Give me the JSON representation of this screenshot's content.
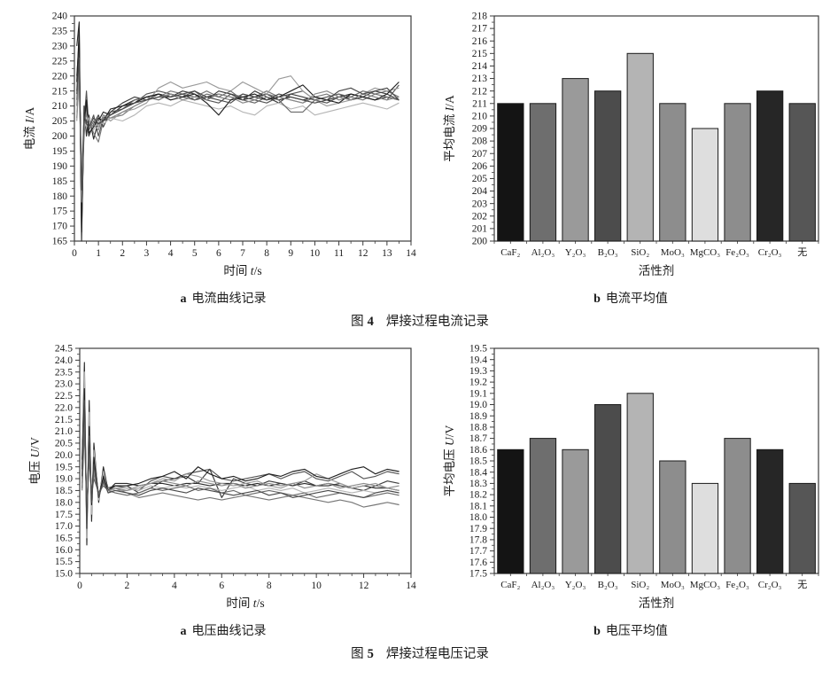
{
  "figures": {
    "fig4": {
      "label": "图",
      "number": "4",
      "title": "焊接过程电流记录"
    },
    "fig5": {
      "label": "图",
      "number": "5",
      "title": "焊接过程电压记录"
    }
  },
  "chart_data": [
    {
      "type": "line",
      "caption_prefix": "a",
      "caption": "电流曲线记录",
      "ylabel": {
        "pre": "电流 ",
        "var": "I",
        "post": "/A"
      },
      "xlabel": {
        "pre": "时间 ",
        "var": "t",
        "post": "/s"
      },
      "ylim": [
        165,
        240
      ],
      "ytick_step": 5,
      "ytick_minor": 2.5,
      "ytick_decimals": 0,
      "xlim": [
        0,
        14
      ],
      "xtick_step": 1,
      "xtick_minor": 0.5,
      "grid": false,
      "legend": false,
      "x": [
        0.1,
        0.2,
        0.3,
        0.4,
        0.5,
        0.6,
        0.8,
        1,
        1.2,
        1.5,
        2,
        2.5,
        3,
        3.5,
        4,
        4.5,
        5,
        5.5,
        6,
        6.5,
        7,
        7.5,
        8,
        8.5,
        9,
        9.5,
        10,
        10.5,
        11,
        11.5,
        12,
        12.5,
        13,
        13.5
      ],
      "series": [
        {
          "color": "#2b2b2b",
          "values": [
            230,
            238,
            165,
            210,
            200,
            207,
            199,
            205,
            208,
            207,
            210,
            212,
            213,
            214,
            213,
            214,
            212,
            213,
            214,
            213,
            212,
            213,
            214,
            212,
            213,
            212,
            213,
            212,
            213,
            214,
            213,
            212,
            213,
            212
          ]
        },
        {
          "color": "#555555",
          "values": [
            220,
            232,
            170,
            205,
            215,
            203,
            207,
            200,
            206,
            208,
            209,
            211,
            214,
            215,
            214,
            213,
            215,
            212,
            211,
            214,
            213,
            212,
            211,
            213,
            214,
            215,
            212,
            211,
            213,
            212,
            214,
            213,
            212,
            217
          ]
        },
        {
          "color": "#777777",
          "values": [
            210,
            225,
            180,
            200,
            210,
            205,
            201,
            198,
            205,
            206,
            207,
            210,
            212,
            213,
            215,
            214,
            213,
            215,
            213,
            212,
            214,
            213,
            215,
            213,
            212,
            211,
            213,
            214,
            212,
            213,
            212,
            214,
            215,
            213
          ]
        },
        {
          "color": "#3d3d3d",
          "values": [
            215,
            230,
            175,
            208,
            205,
            200,
            204,
            207,
            203,
            208,
            211,
            213,
            212,
            214,
            213,
            215,
            214,
            212,
            215,
            214,
            212,
            215,
            213,
            211,
            214,
            213,
            212,
            213,
            214,
            212,
            213,
            215,
            214,
            212
          ]
        },
        {
          "color": "#9a9a9a",
          "values": [
            205,
            220,
            185,
            202,
            208,
            204,
            206,
            203,
            207,
            205,
            208,
            209,
            211,
            216,
            218,
            216,
            217,
            218,
            216,
            215,
            218,
            216,
            214,
            219,
            220,
            215,
            212,
            210,
            211,
            212,
            214,
            216,
            215,
            216
          ]
        },
        {
          "color": "#b5b5b5",
          "values": [
            208,
            215,
            190,
            205,
            203,
            206,
            202,
            205,
            204,
            206,
            205,
            207,
            210,
            211,
            210,
            212,
            211,
            210,
            209,
            210,
            208,
            207,
            210,
            211,
            209,
            210,
            207,
            208,
            209,
            210,
            211,
            210,
            209,
            211
          ]
        },
        {
          "color": "#696969",
          "values": [
            212,
            228,
            172,
            206,
            210,
            202,
            205,
            204,
            206,
            207,
            209,
            212,
            213,
            212,
            214,
            213,
            212,
            214,
            213,
            215,
            212,
            211,
            213,
            212,
            208,
            208,
            212,
            213,
            214,
            213,
            215,
            214,
            213,
            212
          ]
        },
        {
          "color": "#1f1f1f",
          "values": [
            218,
            235,
            168,
            204,
            212,
            201,
            203,
            206,
            205,
            209,
            210,
            211,
            213,
            214,
            212,
            213,
            214,
            211,
            207,
            212,
            213,
            214,
            212,
            213,
            215,
            217,
            213,
            212,
            211,
            214,
            213,
            212,
            214,
            218
          ]
        },
        {
          "color": "#8a8a8a",
          "values": [
            206,
            222,
            178,
            203,
            207,
            205,
            204,
            202,
            207,
            206,
            208,
            210,
            212,
            213,
            214,
            212,
            213,
            212,
            214,
            213,
            211,
            212,
            214,
            213,
            212,
            211,
            214,
            215,
            213,
            212,
            214,
            213,
            212,
            213
          ]
        },
        {
          "color": "#4a4a4a",
          "values": [
            214,
            226,
            182,
            207,
            204,
            203,
            206,
            204,
            205,
            207,
            209,
            211,
            212,
            213,
            213,
            214,
            215,
            213,
            212,
            211,
            214,
            213,
            212,
            214,
            213,
            212,
            211,
            212,
            215,
            216,
            214,
            215,
            216,
            212
          ]
        }
      ]
    },
    {
      "type": "bar",
      "caption_prefix": "b",
      "caption": "电流平均值",
      "ylabel": {
        "pre": "平均电流 ",
        "var": "I",
        "post": "/A"
      },
      "xlabel": {
        "pre": "活性剂",
        "var": "",
        "post": ""
      },
      "ylim": [
        200,
        218
      ],
      "ytick_step": 1,
      "ytick_minor": 0.5,
      "ytick_decimals": 0,
      "grid": false,
      "legend": false,
      "categories": [
        "CaF₂",
        "Al₂O₃",
        "Y₂O₃",
        "B₂O₃",
        "SiO₂",
        "MoO₃",
        "MgCO₃",
        "Fe₂O₃",
        "Cr₂O₃",
        "无"
      ],
      "values": [
        211,
        211,
        213,
        212,
        215,
        211,
        209,
        211,
        212,
        211
      ],
      "colors": [
        "#141414",
        "#6e6e6e",
        "#9a9a9a",
        "#4c4c4c",
        "#b4b4b4",
        "#8d8d8d",
        "#dedede",
        "#8d8d8d",
        "#262626",
        "#565656"
      ]
    },
    {
      "type": "line",
      "caption_prefix": "a",
      "caption": "电压曲线记录",
      "ylabel": {
        "pre": "电压 ",
        "var": "U",
        "post": "/V"
      },
      "xlabel": {
        "pre": "时间 ",
        "var": "t",
        "post": "/s"
      },
      "ylim": [
        15,
        24.5
      ],
      "ytick_step": 0.5,
      "ytick_minor": 0.25,
      "ytick_decimals": 1,
      "xlim": [
        0,
        14
      ],
      "xtick_step": 2,
      "xtick_minor": 0.5,
      "grid": false,
      "legend": false,
      "x": [
        0.1,
        0.2,
        0.3,
        0.4,
        0.5,
        0.6,
        0.8,
        1,
        1.2,
        1.5,
        2,
        2.5,
        3,
        3.5,
        4,
        4.5,
        5,
        5.5,
        6,
        6.5,
        7,
        7.5,
        8,
        8.5,
        9,
        9.5,
        10,
        10.5,
        11,
        11.5,
        12,
        12.5,
        13,
        13.5
      ],
      "series": [
        {
          "color": "#2b2b2b",
          "values": [
            19.8,
            23.9,
            16.2,
            22.3,
            17.2,
            20.5,
            18.0,
            19.5,
            18.5,
            18.8,
            18.8,
            18.7,
            18.8,
            18.8,
            18.7,
            18.8,
            18.8,
            18.7,
            18.8,
            18.8,
            18.7,
            18.8,
            18.7,
            18.8,
            18.7,
            18.8,
            18.7,
            18.7,
            18.8,
            18.6,
            18.7,
            18.6,
            18.6,
            18.5
          ]
        },
        {
          "color": "#555555",
          "values": [
            19.0,
            22.5,
            17.0,
            21.0,
            18.0,
            19.8,
            18.3,
            19.0,
            18.6,
            18.7,
            18.6,
            18.5,
            18.9,
            19.1,
            19.0,
            19.2,
            19.3,
            19.4,
            19.0,
            18.9,
            19.0,
            19.1,
            19.2,
            19.0,
            19.2,
            19.3,
            19.0,
            18.9,
            19.1,
            19.3,
            19.0,
            19.1,
            19.3,
            19.2
          ]
        },
        {
          "color": "#777777",
          "values": [
            18.5,
            21.5,
            17.5,
            20.0,
            18.2,
            19.2,
            18.4,
            18.8,
            18.5,
            18.6,
            18.4,
            18.2,
            18.3,
            18.4,
            18.3,
            18.2,
            18.1,
            18.2,
            18.1,
            18.2,
            18.3,
            18.2,
            18.1,
            18.2,
            18.3,
            18.2,
            18.1,
            18.0,
            18.1,
            18.0,
            17.8,
            17.9,
            18.0,
            17.9
          ]
        },
        {
          "color": "#3d3d3d",
          "values": [
            19.5,
            23.0,
            16.8,
            21.5,
            17.8,
            20.0,
            18.2,
            19.2,
            18.6,
            18.7,
            18.7,
            18.4,
            18.6,
            18.9,
            19.0,
            19.1,
            18.8,
            19.4,
            18.2,
            19.0,
            18.8,
            18.7,
            18.9,
            18.8,
            18.7,
            18.9,
            18.7,
            18.8,
            18.7,
            18.6,
            18.5,
            18.7,
            18.9,
            18.8
          ]
        },
        {
          "color": "#9a9a9a",
          "values": [
            18.8,
            22.0,
            17.3,
            20.5,
            18.1,
            19.5,
            18.3,
            18.9,
            18.6,
            18.5,
            18.5,
            18.6,
            18.8,
            19.0,
            18.9,
            19.2,
            19.1,
            18.9,
            18.8,
            18.7,
            18.8,
            18.9,
            18.7,
            18.6,
            18.8,
            18.9,
            19.2,
            19.0,
            18.8,
            18.6,
            18.7,
            18.8,
            18.6,
            18.5
          ]
        },
        {
          "color": "#b5b5b5",
          "values": [
            19.2,
            23.5,
            16.5,
            21.8,
            17.5,
            20.2,
            18.1,
            19.3,
            18.4,
            18.6,
            18.6,
            18.5,
            18.7,
            18.6,
            18.7,
            18.6,
            18.7,
            18.6,
            18.5,
            18.6,
            18.7,
            18.5,
            18.6,
            18.5,
            18.6,
            18.4,
            18.5,
            18.6,
            18.5,
            18.4,
            18.5,
            18.4,
            18.5,
            18.4
          ]
        },
        {
          "color": "#696969",
          "values": [
            18.6,
            21.0,
            17.8,
            19.8,
            18.3,
            19.0,
            18.4,
            18.7,
            18.5,
            18.4,
            18.3,
            18.4,
            18.6,
            18.5,
            18.6,
            18.7,
            18.5,
            18.6,
            18.4,
            18.5,
            18.3,
            18.4,
            18.5,
            18.4,
            18.3,
            18.4,
            18.2,
            18.3,
            18.4,
            18.3,
            18.2,
            18.3,
            18.4,
            18.3
          ]
        },
        {
          "color": "#1f1f1f",
          "values": [
            19.4,
            22.8,
            17.1,
            21.2,
            17.9,
            19.9,
            18.2,
            19.1,
            18.5,
            18.7,
            18.7,
            18.8,
            19.0,
            19.1,
            19.3,
            19.0,
            19.5,
            19.2,
            19.0,
            19.1,
            18.9,
            19.0,
            19.2,
            19.1,
            19.3,
            19.4,
            19.1,
            19.0,
            19.2,
            19.4,
            19.5,
            19.2,
            19.4,
            19.3
          ]
        },
        {
          "color": "#8a8a8a",
          "values": [
            18.9,
            21.8,
            17.6,
            20.2,
            18.2,
            19.3,
            18.3,
            18.8,
            18.5,
            18.6,
            18.5,
            18.7,
            18.8,
            18.9,
            18.8,
            18.7,
            18.9,
            18.8,
            18.7,
            18.8,
            18.6,
            18.7,
            18.8,
            18.7,
            18.8,
            18.6,
            18.7,
            18.8,
            18.6,
            18.7,
            18.8,
            18.7,
            18.6,
            18.7
          ]
        },
        {
          "color": "#4a4a4a",
          "values": [
            19.1,
            22.3,
            16.9,
            20.8,
            18.0,
            19.6,
            18.2,
            18.9,
            18.4,
            18.5,
            18.4,
            18.3,
            18.5,
            18.6,
            18.5,
            18.4,
            18.6,
            18.5,
            18.4,
            18.3,
            18.4,
            18.5,
            18.3,
            18.4,
            18.2,
            18.3,
            18.4,
            18.5,
            18.4,
            18.3,
            18.2,
            18.4,
            18.5,
            18.4
          ]
        }
      ]
    },
    {
      "type": "bar",
      "caption_prefix": "b",
      "caption": "电压平均值",
      "ylabel": {
        "pre": "平均电压 ",
        "var": "U",
        "post": "/V"
      },
      "xlabel": {
        "pre": "活性剂",
        "var": "",
        "post": ""
      },
      "ylim": [
        17.5,
        19.5
      ],
      "ytick_step": 0.1,
      "ytick_minor": 0.05,
      "ytick_decimals": 1,
      "grid": false,
      "legend": false,
      "categories": [
        "CaF₂",
        "Al₂O₃",
        "Y₂O₃",
        "B₂O₃",
        "SiO₂",
        "MoO₃",
        "MgCO₃",
        "Fe₂O₃",
        "Cr₂O₃",
        "无"
      ],
      "values": [
        18.6,
        18.7,
        18.6,
        19.0,
        19.1,
        18.5,
        18.3,
        18.7,
        18.6,
        18.3
      ],
      "colors": [
        "#141414",
        "#6e6e6e",
        "#9a9a9a",
        "#4c4c4c",
        "#b4b4b4",
        "#8d8d8d",
        "#dedede",
        "#8d8d8d",
        "#262626",
        "#565656"
      ]
    }
  ]
}
